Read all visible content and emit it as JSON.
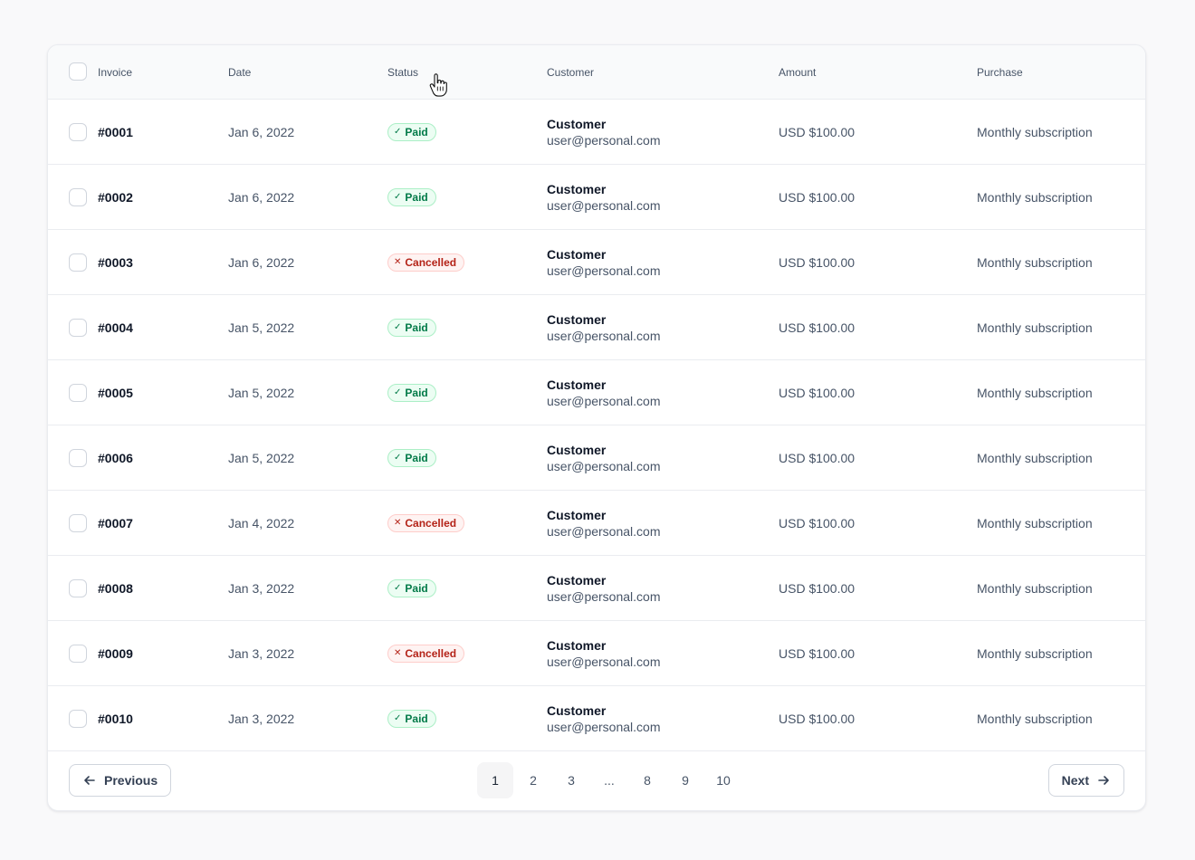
{
  "table": {
    "columns": {
      "invoice": "Invoice",
      "date": "Date",
      "status": "Status",
      "customer": "Customer",
      "amount": "Amount",
      "purchase": "Purchase"
    },
    "rows": [
      {
        "invoice": "#0001",
        "date": "Jan 6, 2022",
        "status": "Paid",
        "status_type": "paid",
        "customer_name": "Customer",
        "customer_email": "user@personal.com",
        "amount": "USD $100.00",
        "purchase": "Monthly subscription"
      },
      {
        "invoice": "#0002",
        "date": "Jan 6, 2022",
        "status": "Paid",
        "status_type": "paid",
        "customer_name": "Customer",
        "customer_email": "user@personal.com",
        "amount": "USD $100.00",
        "purchase": "Monthly subscription"
      },
      {
        "invoice": "#0003",
        "date": "Jan 6, 2022",
        "status": "Cancelled",
        "status_type": "cancelled",
        "customer_name": "Customer",
        "customer_email": "user@personal.com",
        "amount": "USD $100.00",
        "purchase": "Monthly subscription"
      },
      {
        "invoice": "#0004",
        "date": "Jan 5, 2022",
        "status": "Paid",
        "status_type": "paid",
        "customer_name": "Customer",
        "customer_email": "user@personal.com",
        "amount": "USD $100.00",
        "purchase": "Monthly subscription"
      },
      {
        "invoice": "#0005",
        "date": "Jan 5, 2022",
        "status": "Paid",
        "status_type": "paid",
        "customer_name": "Customer",
        "customer_email": "user@personal.com",
        "amount": "USD $100.00",
        "purchase": "Monthly subscription"
      },
      {
        "invoice": "#0006",
        "date": "Jan 5, 2022",
        "status": "Paid",
        "status_type": "paid",
        "customer_name": "Customer",
        "customer_email": "user@personal.com",
        "amount": "USD $100.00",
        "purchase": "Monthly subscription"
      },
      {
        "invoice": "#0007",
        "date": "Jan 4, 2022",
        "status": "Cancelled",
        "status_type": "cancelled",
        "customer_name": "Customer",
        "customer_email": "user@personal.com",
        "amount": "USD $100.00",
        "purchase": "Monthly subscription"
      },
      {
        "invoice": "#0008",
        "date": "Jan 3, 2022",
        "status": "Paid",
        "status_type": "paid",
        "customer_name": "Customer",
        "customer_email": "user@personal.com",
        "amount": "USD $100.00",
        "purchase": "Monthly subscription"
      },
      {
        "invoice": "#0009",
        "date": "Jan 3, 2022",
        "status": "Cancelled",
        "status_type": "cancelled",
        "customer_name": "Customer",
        "customer_email": "user@personal.com",
        "amount": "USD $100.00",
        "purchase": "Monthly subscription"
      },
      {
        "invoice": "#0010",
        "date": "Jan 3, 2022",
        "status": "Paid",
        "status_type": "paid",
        "customer_name": "Customer",
        "customer_email": "user@personal.com",
        "amount": "USD $100.00",
        "purchase": "Monthly subscription"
      }
    ]
  },
  "status_icons": {
    "paid": "check-icon",
    "cancelled": "x-icon"
  },
  "colors": {
    "paid_text": "#027a48",
    "paid_bg": "#ecfdf3",
    "cancelled_text": "#b42318",
    "cancelled_bg": "#fef3f2"
  },
  "pagination": {
    "previous_label": "Previous",
    "next_label": "Next",
    "pages": [
      "1",
      "2",
      "3",
      "...",
      "8",
      "9",
      "10"
    ],
    "current_page": "1"
  }
}
